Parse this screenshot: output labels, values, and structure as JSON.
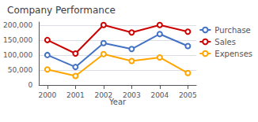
{
  "chart_data": {
    "type": "line",
    "title": "Company Performance",
    "xlabel": "Year",
    "x": [
      2000,
      2001,
      2002,
      2003,
      2004,
      2005
    ],
    "series": [
      {
        "name": "Purchase",
        "color": "#4472c4",
        "values": [
          100000,
          60000,
          140000,
          120000,
          170000,
          130000
        ]
      },
      {
        "name": "Sales",
        "color": "#cc0000",
        "values": [
          150000,
          105000,
          200000,
          175000,
          200000,
          178000
        ]
      },
      {
        "name": "Expenses",
        "color": "#ffa500",
        "values": [
          52000,
          30000,
          103000,
          80000,
          92000,
          40000
        ]
      }
    ],
    "xlim": [
      1999.7,
      2005.3
    ],
    "xticks": [
      2000,
      2001,
      2002,
      2003,
      2004,
      2005
    ],
    "ylim": [
      0,
      210000
    ],
    "yticks": [
      0,
      {
        "value": 50000,
        "label": "50,000"
      },
      {
        "value": 100000,
        "label": "100,000"
      },
      {
        "value": 150000,
        "label": "150,000"
      },
      {
        "value": 200000,
        "label": "200,000"
      }
    ],
    "grid": true,
    "legend": "right"
  }
}
